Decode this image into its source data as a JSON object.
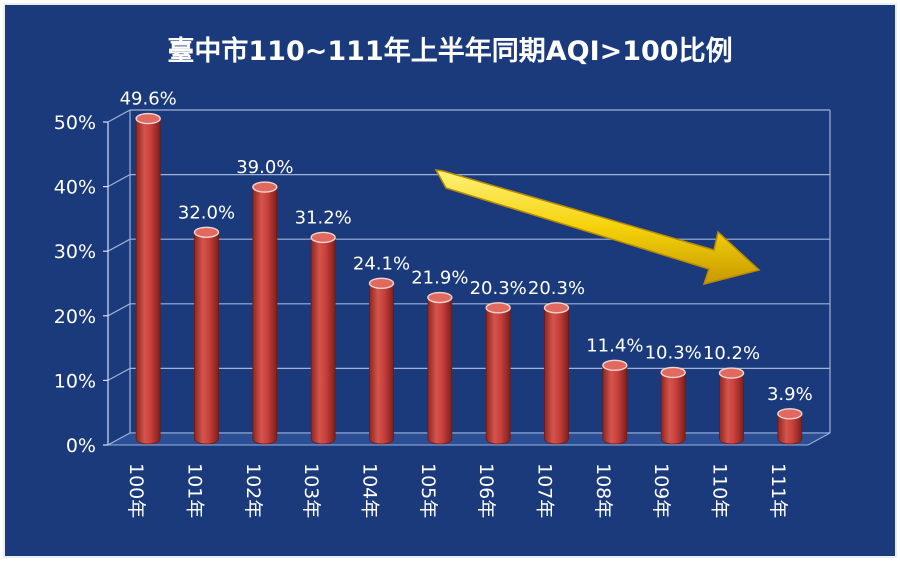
{
  "chart_data": {
    "type": "bar",
    "title": "臺中市110~111年上半年同期AQI>100比例",
    "categories": [
      "100年",
      "101年",
      "102年",
      "103年",
      "104年",
      "105年",
      "106年",
      "107年",
      "108年",
      "109年",
      "110年",
      "111年"
    ],
    "values": [
      49.6,
      32.0,
      39.0,
      31.2,
      24.1,
      21.9,
      20.3,
      20.3,
      11.4,
      10.3,
      10.2,
      3.9
    ],
    "data_labels": [
      "49.6%",
      "32.0%",
      "39.0%",
      "31.2%",
      "24.1%",
      "21.9%",
      "20.3%",
      "20.3%",
      "11.4%",
      "10.3%",
      "10.2%",
      "3.9%"
    ],
    "yticks": [
      "0%",
      "10%",
      "20%",
      "30%",
      "40%",
      "50%"
    ],
    "ylim": [
      0,
      50
    ],
    "xlabel": "",
    "ylabel": "",
    "grid": true,
    "legend": "none",
    "annotation": "downward trend arrow",
    "colors": {
      "background": "#1b3a7c",
      "border": "#ffffff",
      "bar": "#c9413d",
      "bar_top": "#e16a60",
      "text": "#ffffff",
      "arrow": "#f5d20a"
    }
  }
}
